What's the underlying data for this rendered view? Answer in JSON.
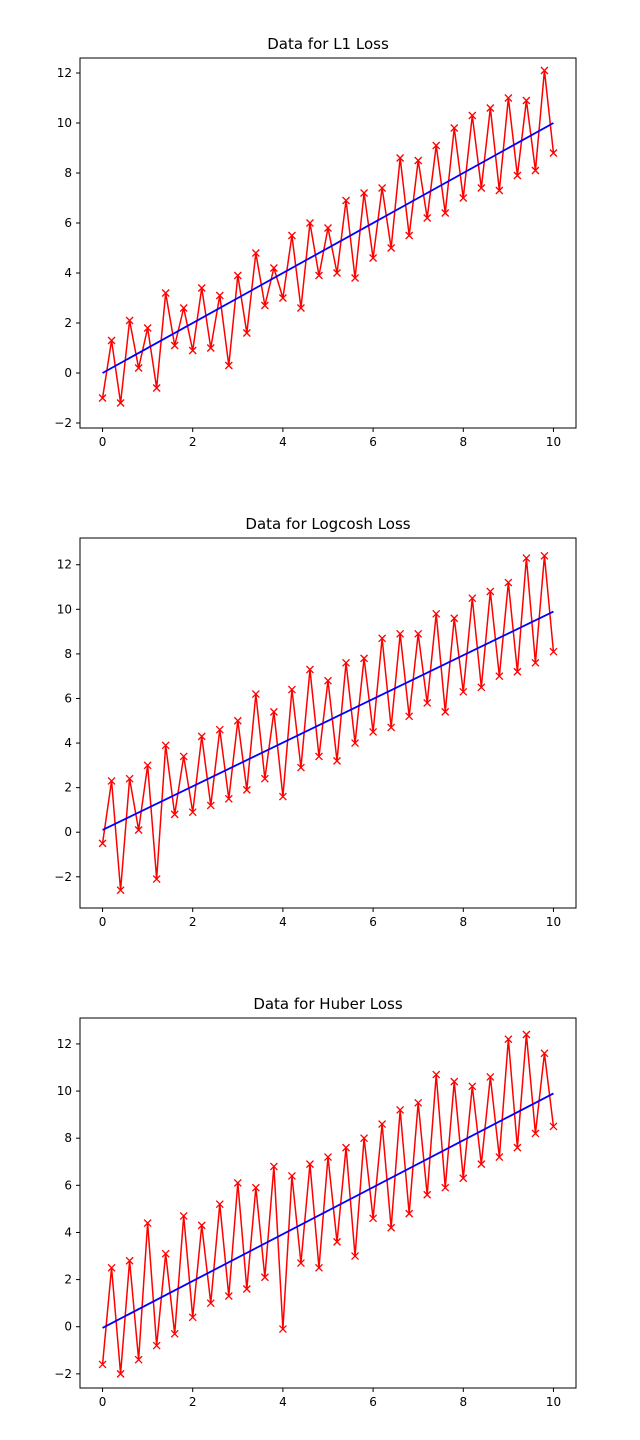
{
  "chart_data": [
    {
      "type": "line",
      "title": "Data for L1 Loss",
      "xlabel": "",
      "ylabel": "",
      "xlim": [
        -0.5,
        10.5
      ],
      "ylim": [
        -2.2,
        12.6
      ],
      "xticks": [
        0,
        2,
        4,
        6,
        8,
        10
      ],
      "yticks": [
        -2,
        0,
        2,
        4,
        6,
        8,
        10,
        12
      ],
      "grid": false,
      "colors": {
        "data": "#ff0000",
        "fit": "#0000ff"
      },
      "series": [
        {
          "style": "red line with x markers",
          "x": [
            0.0,
            0.2,
            0.4,
            0.6,
            0.8,
            1.0,
            1.2,
            1.4,
            1.6,
            1.8,
            2.0,
            2.2,
            2.4,
            2.6,
            2.8,
            3.0,
            3.2,
            3.4,
            3.6,
            3.8,
            4.0,
            4.2,
            4.4,
            4.6,
            4.8,
            5.0,
            5.2,
            5.4,
            5.6,
            5.8,
            6.0,
            6.2,
            6.4,
            6.6,
            6.8,
            7.0,
            7.2,
            7.4,
            7.6,
            7.8,
            8.0,
            8.2,
            8.4,
            8.6,
            8.8,
            9.0,
            9.2,
            9.4,
            9.6,
            9.8,
            10.0
          ],
          "y": [
            -1.0,
            1.3,
            -1.2,
            2.1,
            0.2,
            1.8,
            -0.6,
            3.2,
            1.1,
            2.6,
            0.9,
            3.4,
            1.0,
            3.1,
            0.3,
            3.9,
            1.6,
            4.8,
            2.7,
            4.2,
            3.0,
            5.5,
            2.6,
            6.0,
            3.9,
            5.8,
            4.0,
            6.9,
            3.8,
            7.2,
            4.6,
            7.4,
            5.0,
            8.6,
            5.5,
            8.5,
            6.2,
            9.1,
            6.4,
            9.8,
            7.0,
            10.3,
            7.4,
            10.6,
            7.3,
            11.0,
            7.9,
            10.9,
            8.1,
            12.1,
            8.8
          ]
        },
        {
          "style": "blue line",
          "x": [
            0,
            10
          ],
          "y": [
            0.0,
            10.0
          ]
        }
      ]
    },
    {
      "type": "line",
      "title": "Data for Logcosh Loss",
      "xlabel": "",
      "ylabel": "",
      "xlim": [
        -0.5,
        10.5
      ],
      "ylim": [
        -3.4,
        13.2
      ],
      "xticks": [
        0,
        2,
        4,
        6,
        8,
        10
      ],
      "yticks": [
        -2,
        0,
        2,
        4,
        6,
        8,
        10,
        12
      ],
      "grid": false,
      "colors": {
        "data": "#ff0000",
        "fit": "#0000ff"
      },
      "series": [
        {
          "style": "red line with x markers",
          "x": [
            0.0,
            0.2,
            0.4,
            0.6,
            0.8,
            1.0,
            1.2,
            1.4,
            1.6,
            1.8,
            2.0,
            2.2,
            2.4,
            2.6,
            2.8,
            3.0,
            3.2,
            3.4,
            3.6,
            3.8,
            4.0,
            4.2,
            4.4,
            4.6,
            4.8,
            5.0,
            5.2,
            5.4,
            5.6,
            5.8,
            6.0,
            6.2,
            6.4,
            6.6,
            6.8,
            7.0,
            7.2,
            7.4,
            7.6,
            7.8,
            8.0,
            8.2,
            8.4,
            8.6,
            8.8,
            9.0,
            9.2,
            9.4,
            9.6,
            9.8,
            10.0
          ],
          "y": [
            -0.5,
            2.3,
            -2.6,
            2.4,
            0.1,
            3.0,
            -2.1,
            3.9,
            0.8,
            3.4,
            0.9,
            4.3,
            1.2,
            4.6,
            1.5,
            5.0,
            1.9,
            6.2,
            2.4,
            5.4,
            1.6,
            6.4,
            2.9,
            7.3,
            3.4,
            6.8,
            3.2,
            7.6,
            4.0,
            7.8,
            4.5,
            8.7,
            4.7,
            8.9,
            5.2,
            8.9,
            5.8,
            9.8,
            5.4,
            9.6,
            6.3,
            10.5,
            6.5,
            10.8,
            7.0,
            11.2,
            7.2,
            12.3,
            7.6,
            12.4,
            8.1
          ]
        },
        {
          "style": "blue line",
          "x": [
            0,
            10
          ],
          "y": [
            0.1,
            9.9
          ]
        }
      ]
    },
    {
      "type": "line",
      "title": "Data for Huber Loss",
      "xlabel": "",
      "ylabel": "",
      "xlim": [
        -0.5,
        10.5
      ],
      "ylim": [
        -2.6,
        13.1
      ],
      "xticks": [
        0,
        2,
        4,
        6,
        8,
        10
      ],
      "yticks": [
        -2,
        0,
        2,
        4,
        6,
        8,
        10,
        12
      ],
      "grid": false,
      "colors": {
        "data": "#ff0000",
        "fit": "#0000ff"
      },
      "series": [
        {
          "style": "red line with x markers",
          "x": [
            0.0,
            0.2,
            0.4,
            0.6,
            0.8,
            1.0,
            1.2,
            1.4,
            1.6,
            1.8,
            2.0,
            2.2,
            2.4,
            2.6,
            2.8,
            3.0,
            3.2,
            3.4,
            3.6,
            3.8,
            4.0,
            4.2,
            4.4,
            4.6,
            4.8,
            5.0,
            5.2,
            5.4,
            5.6,
            5.8,
            6.0,
            6.2,
            6.4,
            6.6,
            6.8,
            7.0,
            7.2,
            7.4,
            7.6,
            7.8,
            8.0,
            8.2,
            8.4,
            8.6,
            8.8,
            9.0,
            9.2,
            9.4,
            9.6,
            9.8,
            10.0
          ],
          "y": [
            -1.6,
            2.5,
            -2.0,
            2.8,
            -1.4,
            4.4,
            -0.8,
            3.1,
            -0.3,
            4.7,
            0.4,
            4.3,
            1.0,
            5.2,
            1.3,
            6.1,
            1.6,
            5.9,
            2.1,
            6.8,
            -0.1,
            6.4,
            2.7,
            6.9,
            2.5,
            7.2,
            3.6,
            7.6,
            3.0,
            8.0,
            4.6,
            8.6,
            4.2,
            9.2,
            4.8,
            9.5,
            5.6,
            10.7,
            5.9,
            10.4,
            6.3,
            10.2,
            6.9,
            10.6,
            7.2,
            12.2,
            7.6,
            12.4,
            8.2,
            11.6,
            8.5
          ]
        },
        {
          "style": "blue line",
          "x": [
            0,
            10
          ],
          "y": [
            -0.05,
            9.9
          ]
        }
      ]
    }
  ]
}
